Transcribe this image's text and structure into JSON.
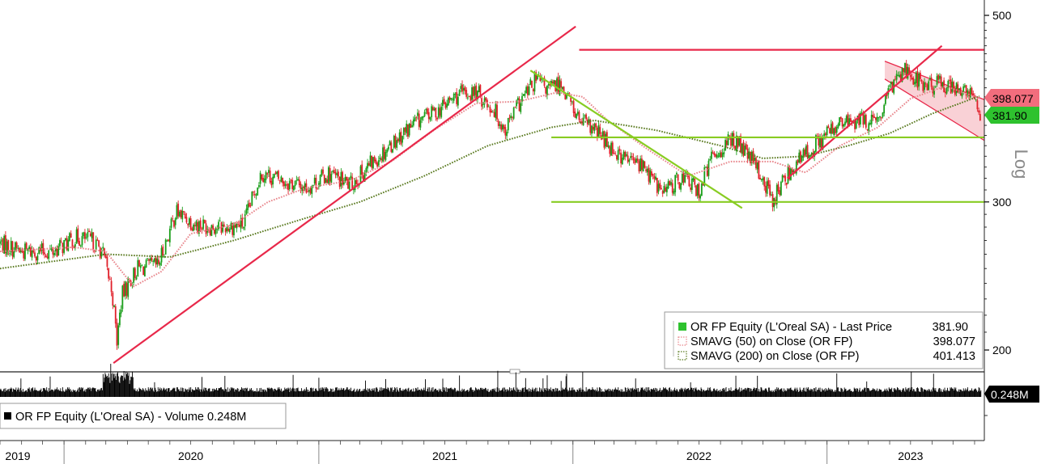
{
  "chart_data": {
    "type": "line",
    "title": "",
    "scale_label": "Log",
    "y_scale": "log",
    "ylim": [
      190,
      520
    ],
    "yticks": [
      "500",
      "300",
      "200"
    ],
    "x_labels": [
      "2019",
      "2020",
      "2021",
      "2022",
      "2023"
    ],
    "xlim": [
      "2019-10-01",
      "2023-08-15"
    ],
    "colors": {
      "up": "#1a9e1a",
      "down": "#e0202a",
      "sma50": "#e8868c",
      "sma200": "#5a7a20",
      "trend_red": "#e8284a",
      "trend_green": "#88cc22",
      "channel_fill": "#f7c6cc",
      "last_badge": "#2ec22e",
      "sma50_badge": "#f26d7d",
      "volume": "#000000"
    },
    "price_path": [
      [
        "2019-10-01",
        268
      ],
      [
        "2019-11-01",
        262
      ],
      [
        "2019-12-15",
        262
      ],
      [
        "2020-01-20",
        272
      ],
      [
        "2020-02-10",
        270
      ],
      [
        "2020-02-25",
        262
      ],
      [
        "2020-03-10",
        235
      ],
      [
        "2020-03-17",
        205
      ],
      [
        "2020-03-24",
        232
      ],
      [
        "2020-04-15",
        250
      ],
      [
        "2020-05-15",
        252
      ],
      [
        "2020-06-10",
        292
      ],
      [
        "2020-07-10",
        282
      ],
      [
        "2020-08-15",
        280
      ],
      [
        "2020-09-15",
        282
      ],
      [
        "2020-10-10",
        325
      ],
      [
        "2020-11-10",
        318
      ],
      [
        "2020-12-15",
        312
      ],
      [
        "2021-01-15",
        324
      ],
      [
        "2021-02-15",
        314
      ],
      [
        "2021-03-20",
        335
      ],
      [
        "2021-04-20",
        355
      ],
      [
        "2021-05-20",
        373
      ],
      [
        "2021-06-20",
        385
      ],
      [
        "2021-07-20",
        402
      ],
      [
        "2021-08-15",
        405
      ],
      [
        "2021-09-10",
        386
      ],
      [
        "2021-09-25",
        365
      ],
      [
        "2021-10-15",
        392
      ],
      [
        "2021-11-10",
        420
      ],
      [
        "2021-11-25",
        408
      ],
      [
        "2021-12-15",
        415
      ],
      [
        "2022-01-10",
        375
      ],
      [
        "2022-02-10",
        360
      ],
      [
        "2022-03-10",
        340
      ],
      [
        "2022-04-10",
        332
      ],
      [
        "2022-05-10",
        308
      ],
      [
        "2022-06-10",
        322
      ],
      [
        "2022-06-30",
        308
      ],
      [
        "2022-07-20",
        340
      ],
      [
        "2022-08-20",
        357
      ],
      [
        "2022-09-20",
        332
      ],
      [
        "2022-10-15",
        302
      ],
      [
        "2022-11-10",
        328
      ],
      [
        "2022-12-10",
        348
      ],
      [
        "2023-01-15",
        370
      ],
      [
        "2023-02-15",
        375
      ],
      [
        "2023-03-15",
        372
      ],
      [
        "2023-04-10",
        425
      ],
      [
        "2023-04-25",
        432
      ],
      [
        "2023-05-20",
        412
      ],
      [
        "2023-06-15",
        415
      ],
      [
        "2023-07-10",
        408
      ],
      [
        "2023-08-01",
        398
      ],
      [
        "2023-08-10",
        381.9
      ]
    ],
    "sma50_path": [
      [
        "2019-10-01",
        262
      ],
      [
        "2020-01-15",
        265
      ],
      [
        "2020-03-01",
        262
      ],
      [
        "2020-04-10",
        238
      ],
      [
        "2020-05-20",
        248
      ],
      [
        "2020-07-01",
        275
      ],
      [
        "2020-09-01",
        282
      ],
      [
        "2020-10-20",
        300
      ],
      [
        "2020-12-15",
        312
      ],
      [
        "2021-02-15",
        318
      ],
      [
        "2021-04-15",
        335
      ],
      [
        "2021-06-15",
        365
      ],
      [
        "2021-08-15",
        393
      ],
      [
        "2021-10-15",
        395
      ],
      [
        "2021-12-10",
        405
      ],
      [
        "2022-01-15",
        400
      ],
      [
        "2022-02-20",
        375
      ],
      [
        "2022-04-15",
        348
      ],
      [
        "2022-06-15",
        322
      ],
      [
        "2022-08-15",
        335
      ],
      [
        "2022-10-15",
        335
      ],
      [
        "2022-12-01",
        325
      ],
      [
        "2023-01-20",
        350
      ],
      [
        "2023-03-15",
        368
      ],
      [
        "2023-05-01",
        398
      ],
      [
        "2023-06-20",
        412
      ],
      [
        "2023-08-10",
        398.077
      ]
    ],
    "sma200_path": [
      [
        "2019-10-01",
        250
      ],
      [
        "2020-03-01",
        260
      ],
      [
        "2020-06-01",
        258
      ],
      [
        "2020-09-01",
        270
      ],
      [
        "2020-12-01",
        285
      ],
      [
        "2021-03-01",
        300
      ],
      [
        "2021-06-01",
        322
      ],
      [
        "2021-09-01",
        350
      ],
      [
        "2021-12-01",
        368
      ],
      [
        "2022-02-01",
        375
      ],
      [
        "2022-05-01",
        365
      ],
      [
        "2022-08-01",
        350
      ],
      [
        "2022-10-01",
        338
      ],
      [
        "2022-12-01",
        340
      ],
      [
        "2023-02-01",
        350
      ],
      [
        "2023-04-01",
        362
      ],
      [
        "2023-06-01",
        382
      ],
      [
        "2023-08-10",
        401.413
      ]
    ],
    "trendlines": [
      {
        "color": "red",
        "from": [
          "2020-03-12",
          193
        ],
        "to": [
          "2022-01-05",
          485
        ]
      },
      {
        "color": "red",
        "from": [
          "2022-01-10",
          455
        ],
        "to": [
          "2023-08-15",
          455
        ]
      },
      {
        "color": "red",
        "from": [
          "2022-11-05",
          320
        ],
        "to": [
          "2023-06-15",
          460
        ]
      },
      {
        "color": "green",
        "from": [
          "2021-11-01",
          430
        ],
        "to": [
          "2022-09-01",
          295
        ]
      },
      {
        "color": "green",
        "from": [
          "2021-12-01",
          358
        ],
        "to": [
          "2023-08-15",
          358
        ]
      },
      {
        "color": "green",
        "from": [
          "2021-12-01",
          300
        ],
        "to": [
          "2023-08-15",
          300
        ]
      }
    ],
    "channel": {
      "upper": [
        [
          "2023-03-25",
          441
        ],
        [
          "2023-08-15",
          397
        ]
      ],
      "lower": [
        [
          "2023-03-25",
          420
        ],
        [
          "2023-08-15",
          355
        ]
      ]
    },
    "badges": {
      "sma50": "398.077",
      "last": "381.90",
      "volume": "0.248M"
    },
    "legend": [
      {
        "swatch": "green-box",
        "label": "OR FP Equity (L'Oreal SA) - Last Price",
        "value": "381.90"
      },
      {
        "swatch": "red-dotted",
        "label": "SMAVG (50)  on Close (OR FP)",
        "value": "398.077"
      },
      {
        "swatch": "green-dotted",
        "label": "SMAVG (200)  on Close (OR FP)",
        "value": "401.413"
      }
    ],
    "volume_legend": "OR FP Equity (L'Oreal SA) - Volume 0.248M"
  }
}
